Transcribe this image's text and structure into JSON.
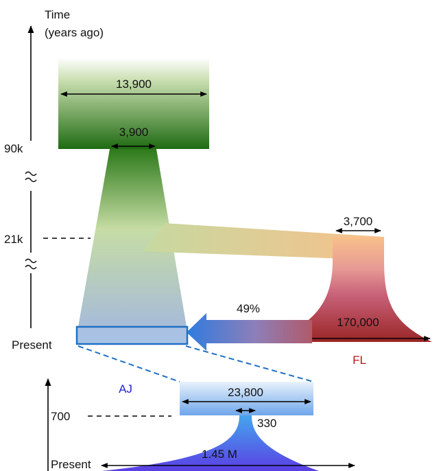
{
  "axis": {
    "title_line1": "Time",
    "title_line2": "(years ago)",
    "tick_90k": "90k",
    "tick_21k": "21k",
    "tick_present": "Present"
  },
  "ancestral": {
    "size_top": "13,900",
    "size_bottom": "3,900"
  },
  "fl": {
    "name": "FL",
    "size_top": "3,700",
    "size_bottom": "170,000"
  },
  "migration": {
    "percent": "49%"
  },
  "aj": {
    "name": "AJ",
    "size_top": "23,800",
    "bottleneck": "330",
    "size_bottom": "1.45 M",
    "axis_tick_700": "700",
    "axis_present": "Present"
  },
  "colors": {
    "ancestral_green": "#1f6b12",
    "fl_peach": "#f8c08a",
    "fl_red": "#a02828",
    "aj_blue": "#2b6fd6",
    "aj_purple": "#5a4ce0",
    "inset_box": "#1f6fc4",
    "aj_label": "#2222cc",
    "fl_label": "#b01818"
  }
}
